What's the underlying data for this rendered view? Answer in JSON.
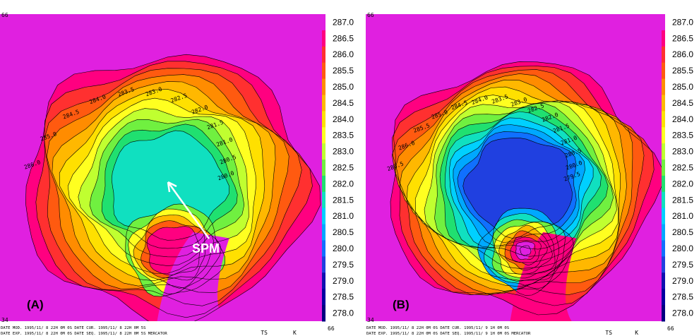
{
  "chart_data": [
    {
      "type": "heatmap",
      "panel_label": "(A)",
      "annotation": "SPM",
      "quantity_label": "TS",
      "unit_label": "K",
      "x_axis_range_labels": [
        "34",
        "66"
      ],
      "y_axis_top_label": "66",
      "colorbar_ticks": [
        287.0,
        286.5,
        286.0,
        285.5,
        285.0,
        284.5,
        284.0,
        283.5,
        283.0,
        282.5,
        282.0,
        281.5,
        281.0,
        280.5,
        280.0,
        279.5,
        279.0,
        278.5,
        278.0
      ],
      "colorbar_tick_labels": [
        "287.0",
        "286.5",
        "286.0",
        "285.5",
        "285.0",
        "284.5",
        "284.0",
        "283.5",
        "283.0",
        "282.5",
        "282.0",
        "281.5",
        "281.0",
        "280.5",
        "280.0",
        "279.5",
        "279.0",
        "278.5",
        "278.0"
      ],
      "contour_labels": [
        "286.0",
        "285.0",
        "284.5",
        "284.0",
        "283.5",
        "283.0",
        "282.5",
        "282.0",
        "281.5",
        "281.0",
        "280.5",
        "280.0"
      ],
      "footer_lines": [
        "DATE MOD. 1995/11/ 8  22H 0M 0S    DATE CUR. 1995/11/ 8  22H 0M 5S",
        "DATE EXP. 1995/11/ 8  22H 0M 0S    DATE SEQ. 1995/11/ 8  22H 0M 5S   MERCATOR"
      ]
    },
    {
      "type": "heatmap",
      "panel_label": "(B)",
      "quantity_label": "TS",
      "unit_label": "K",
      "x_axis_range_labels": [
        "34",
        "66"
      ],
      "y_axis_top_label": "66",
      "colorbar_ticks": [
        287.0,
        286.5,
        286.0,
        285.5,
        285.0,
        284.5,
        284.0,
        283.5,
        283.0,
        282.5,
        282.0,
        281.5,
        281.0,
        280.5,
        280.0,
        279.5,
        279.0,
        278.5,
        278.0
      ],
      "colorbar_tick_labels": [
        "287.0",
        "286.5",
        "286.0",
        "285.5",
        "285.0",
        "284.5",
        "284.0",
        "283.5",
        "283.0",
        "282.5",
        "282.0",
        "281.5",
        "281.0",
        "280.5",
        "280.0",
        "279.5",
        "279.0",
        "278.5",
        "278.0"
      ],
      "contour_labels": [
        "286.5",
        "286.0",
        "285.5",
        "285.0",
        "284.5",
        "284.0",
        "283.5",
        "283.0",
        "282.5",
        "282.0",
        "281.5",
        "281.0",
        "280.5",
        "280.0",
        "279.5"
      ],
      "footer_lines": [
        "DATE MOD. 1995/11/ 8  22H 0M 0S    DATE CUR. 1995/11/ 9   1H 0M 0S",
        "DATE EXP. 1995/11/ 8  22H 0M 0S    DATE SEQ. 1995/11/ 9   1H 0M 0S   MERCATOR"
      ]
    }
  ],
  "colors": {
    "palette": [
      "#e020e0",
      "#ff0080",
      "#ff3030",
      "#ff5a10",
      "#ff8c00",
      "#ffb800",
      "#ffe000",
      "#ffff20",
      "#c0ff30",
      "#70f040",
      "#20e070",
      "#10e0c0",
      "#00d0ff",
      "#00a8ff",
      "#1070ff",
      "#2040e0",
      "#1010b0",
      "#0000a0",
      "#000080"
    ],
    "annotation": "#ffffff",
    "contour": "#000000"
  }
}
